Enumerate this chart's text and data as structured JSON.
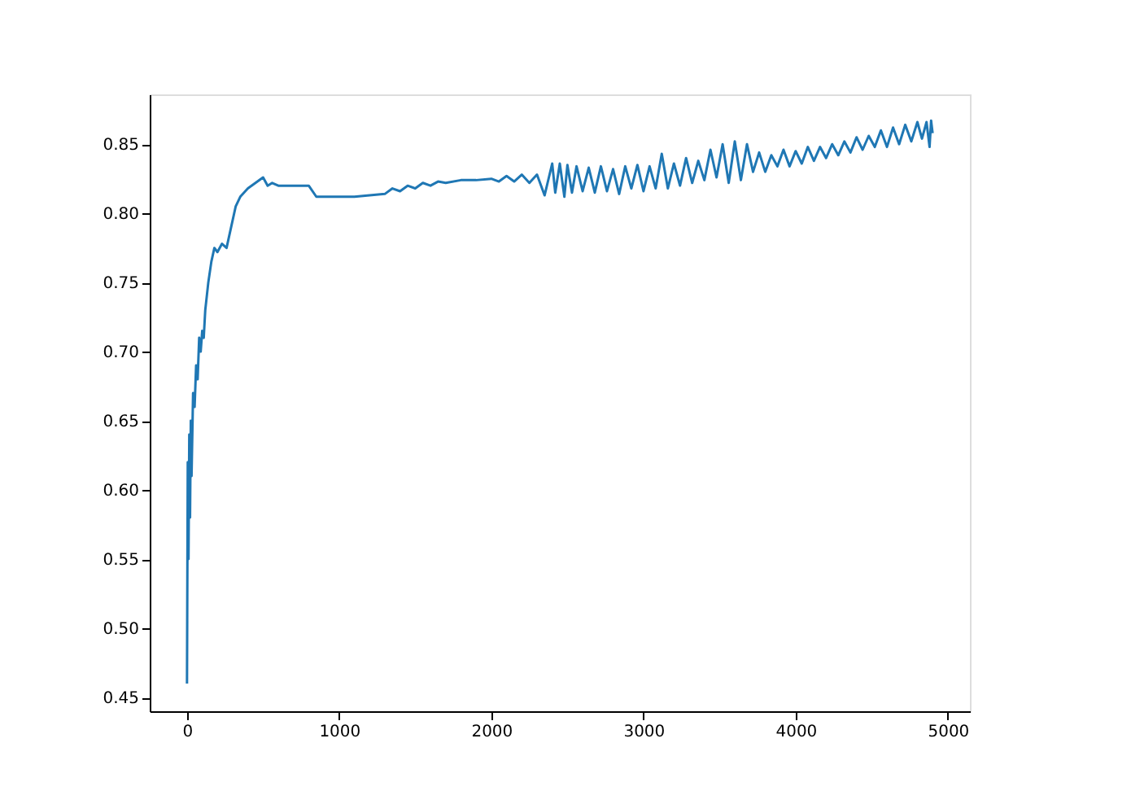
{
  "chart_data": {
    "type": "line",
    "x": [
      0,
      5,
      10,
      15,
      20,
      25,
      30,
      40,
      50,
      60,
      70,
      80,
      90,
      100,
      110,
      120,
      140,
      160,
      180,
      200,
      230,
      260,
      290,
      320,
      350,
      400,
      450,
      500,
      530,
      560,
      600,
      700,
      800,
      850,
      1000,
      1100,
      1200,
      1300,
      1350,
      1400,
      1450,
      1500,
      1550,
      1600,
      1650,
      1700,
      1800,
      1900,
      2000,
      2050,
      2100,
      2150,
      2200,
      2250,
      2300,
      2350,
      2400,
      2420,
      2450,
      2480,
      2500,
      2530,
      2560,
      2600,
      2640,
      2680,
      2720,
      2760,
      2800,
      2840,
      2880,
      2920,
      2960,
      3000,
      3040,
      3080,
      3120,
      3160,
      3200,
      3240,
      3280,
      3320,
      3360,
      3400,
      3440,
      3480,
      3520,
      3560,
      3600,
      3640,
      3680,
      3720,
      3760,
      3800,
      3840,
      3880,
      3920,
      3960,
      4000,
      4040,
      4080,
      4120,
      4160,
      4200,
      4240,
      4280,
      4320,
      4360,
      4400,
      4440,
      4480,
      4520,
      4560,
      4600,
      4640,
      4680,
      4720,
      4760,
      4800,
      4830,
      4860,
      4880,
      4890,
      4900
    ],
    "series": [
      {
        "color": "#1f77b4",
        "values": [
          0.46,
          0.62,
          0.55,
          0.64,
          0.58,
          0.65,
          0.61,
          0.67,
          0.66,
          0.69,
          0.68,
          0.71,
          0.7,
          0.715,
          0.71,
          0.73,
          0.75,
          0.765,
          0.775,
          0.772,
          0.778,
          0.775,
          0.79,
          0.805,
          0.812,
          0.818,
          0.822,
          0.826,
          0.82,
          0.822,
          0.82,
          0.82,
          0.82,
          0.812,
          0.812,
          0.812,
          0.813,
          0.814,
          0.818,
          0.816,
          0.82,
          0.818,
          0.822,
          0.82,
          0.823,
          0.822,
          0.824,
          0.824,
          0.825,
          0.823,
          0.827,
          0.823,
          0.828,
          0.822,
          0.828,
          0.813,
          0.836,
          0.815,
          0.836,
          0.812,
          0.835,
          0.815,
          0.834,
          0.816,
          0.833,
          0.815,
          0.834,
          0.816,
          0.832,
          0.814,
          0.834,
          0.818,
          0.835,
          0.816,
          0.834,
          0.818,
          0.843,
          0.818,
          0.836,
          0.82,
          0.84,
          0.822,
          0.838,
          0.824,
          0.846,
          0.826,
          0.85,
          0.822,
          0.852,
          0.824,
          0.85,
          0.83,
          0.844,
          0.83,
          0.842,
          0.834,
          0.846,
          0.834,
          0.845,
          0.836,
          0.848,
          0.838,
          0.848,
          0.84,
          0.85,
          0.842,
          0.852,
          0.844,
          0.855,
          0.846,
          0.856,
          0.848,
          0.86,
          0.848,
          0.862,
          0.85,
          0.864,
          0.852,
          0.866,
          0.854,
          0.866,
          0.848,
          0.867,
          0.858
        ]
      }
    ],
    "xlim": [
      -245,
      5145
    ],
    "ylim": [
      0.44,
      0.886
    ],
    "xticks": [
      0,
      1000,
      2000,
      3000,
      4000,
      5000
    ],
    "yticks": [
      {
        "value": 0.45,
        "label": "0.45"
      },
      {
        "value": 0.5,
        "label": "0.50"
      },
      {
        "value": 0.55,
        "label": "0.55"
      },
      {
        "value": 0.6,
        "label": "0.60"
      },
      {
        "value": 0.65,
        "label": "0.65"
      },
      {
        "value": 0.7,
        "label": "0.70"
      },
      {
        "value": 0.75,
        "label": "0.75"
      },
      {
        "value": 0.8,
        "label": "0.80"
      },
      {
        "value": 0.85,
        "label": "0.85"
      }
    ],
    "grid": false
  }
}
